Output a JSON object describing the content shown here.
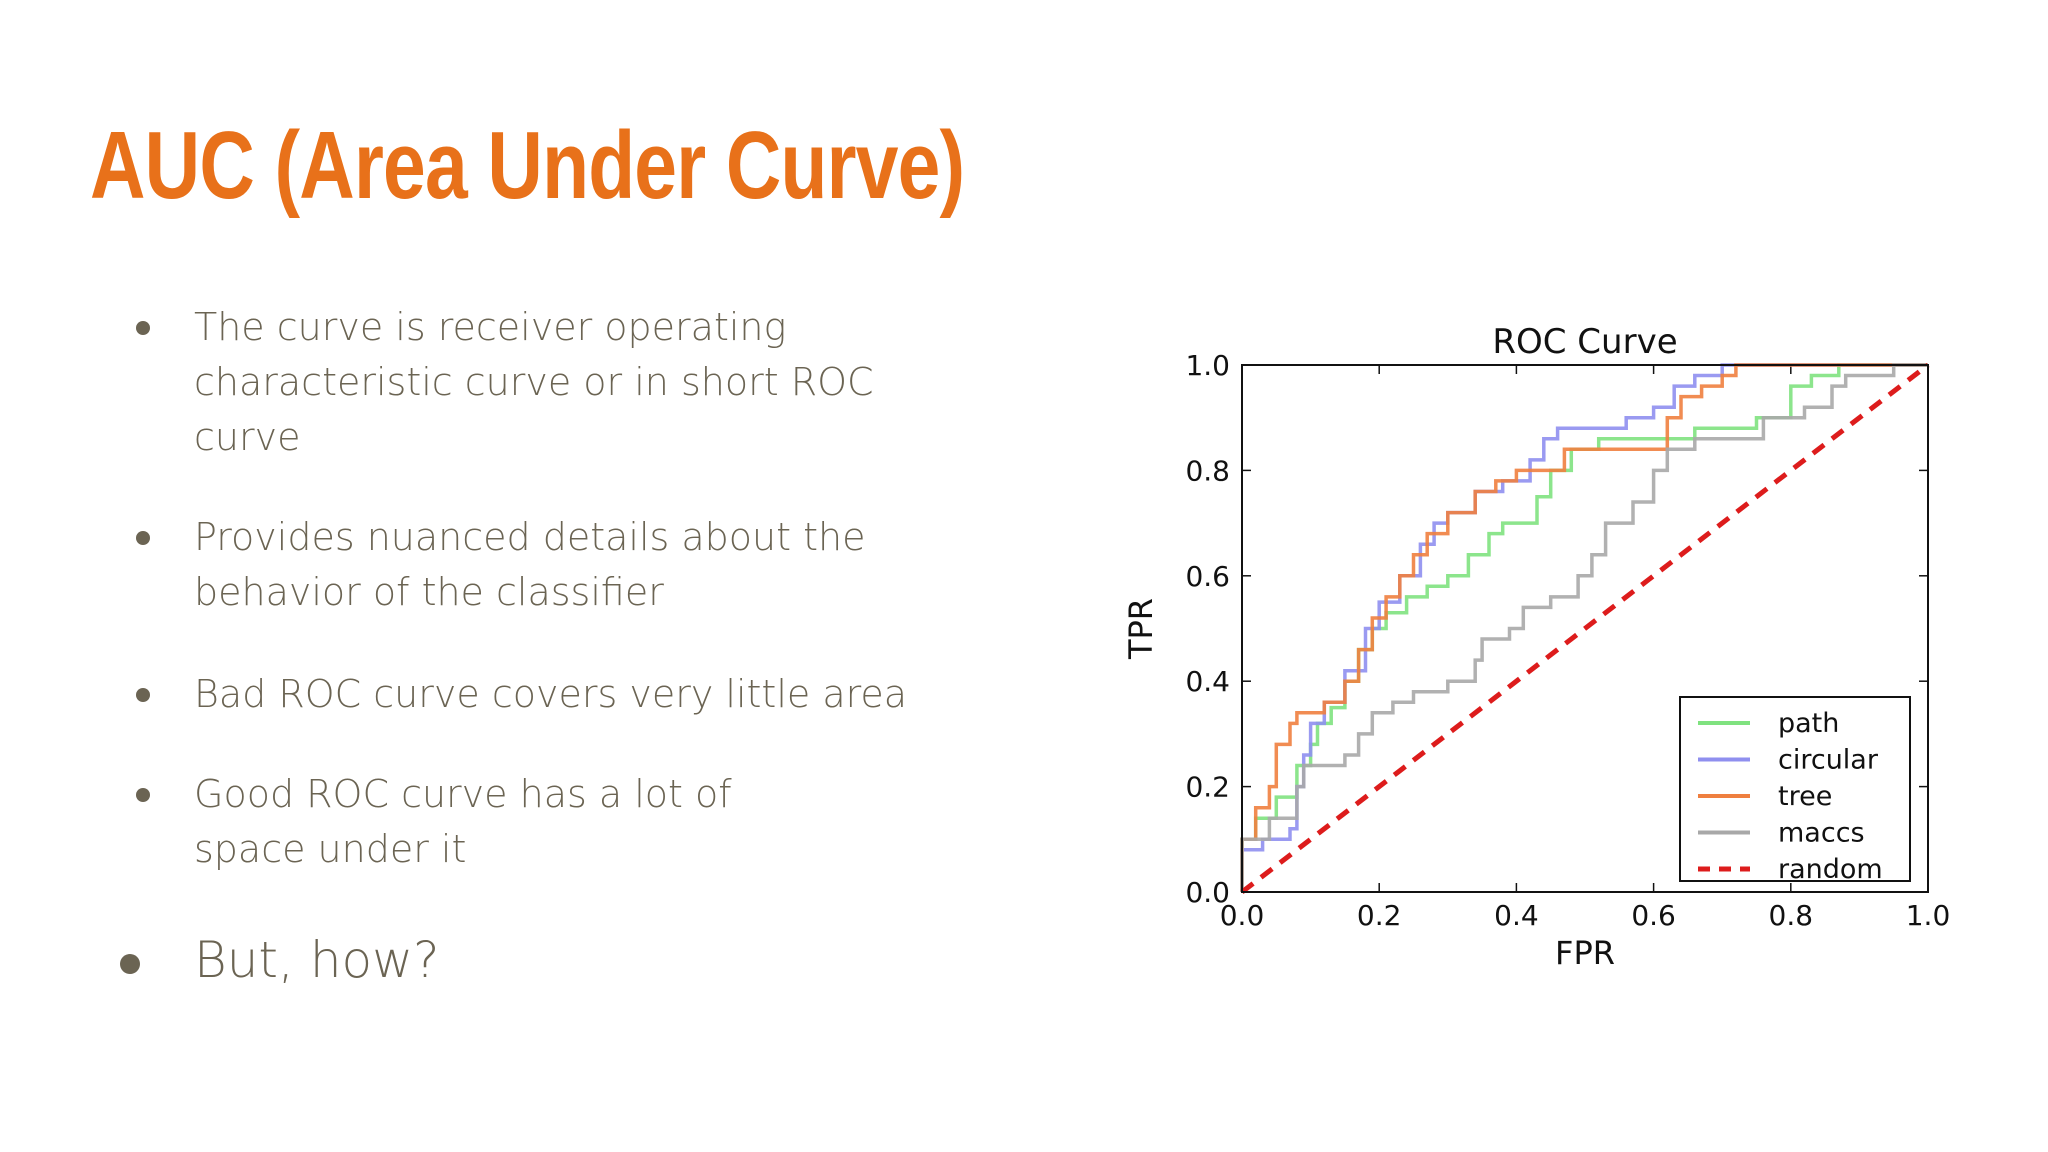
{
  "slide": {
    "title": "AUC (Area Under Curve)",
    "title_color": "#e8711a",
    "text_color": "#6b6453",
    "bullets": [
      "The curve is receiver operating characteristic curve or in short ROC curve",
      "Provides nuanced details about the behavior of the classifier",
      "Bad ROC curve covers very little area",
      "Good ROC curve has a lot of space under it",
      "But, how?"
    ]
  },
  "chart_data": {
    "type": "line",
    "title": "ROC Curve",
    "xlabel": "FPR",
    "ylabel": "TPR",
    "xlim": [
      0.0,
      1.0
    ],
    "ylim": [
      0.0,
      1.0
    ],
    "xticks": [
      "0.0",
      "0.2",
      "0.4",
      "0.6",
      "0.8",
      "1.0"
    ],
    "yticks": [
      "0.0",
      "0.2",
      "0.4",
      "0.6",
      "0.8",
      "1.0"
    ],
    "grid": false,
    "legend_position": "lower-right",
    "series": [
      {
        "name": "path",
        "color": "#7fe27f",
        "style": "solid",
        "points": [
          [
            0.0,
            0.0
          ],
          [
            0.0,
            0.1
          ],
          [
            0.02,
            0.1
          ],
          [
            0.02,
            0.14
          ],
          [
            0.05,
            0.14
          ],
          [
            0.05,
            0.18
          ],
          [
            0.08,
            0.18
          ],
          [
            0.08,
            0.24
          ],
          [
            0.1,
            0.24
          ],
          [
            0.1,
            0.28
          ],
          [
            0.11,
            0.28
          ],
          [
            0.11,
            0.32
          ],
          [
            0.13,
            0.32
          ],
          [
            0.13,
            0.35
          ],
          [
            0.15,
            0.35
          ],
          [
            0.15,
            0.4
          ],
          [
            0.17,
            0.4
          ],
          [
            0.17,
            0.46
          ],
          [
            0.19,
            0.46
          ],
          [
            0.19,
            0.5
          ],
          [
            0.21,
            0.5
          ],
          [
            0.21,
            0.53
          ],
          [
            0.24,
            0.53
          ],
          [
            0.24,
            0.56
          ],
          [
            0.27,
            0.56
          ],
          [
            0.27,
            0.58
          ],
          [
            0.3,
            0.58
          ],
          [
            0.3,
            0.6
          ],
          [
            0.33,
            0.6
          ],
          [
            0.33,
            0.64
          ],
          [
            0.36,
            0.64
          ],
          [
            0.36,
            0.68
          ],
          [
            0.38,
            0.68
          ],
          [
            0.38,
            0.7
          ],
          [
            0.43,
            0.7
          ],
          [
            0.43,
            0.75
          ],
          [
            0.45,
            0.75
          ],
          [
            0.45,
            0.8
          ],
          [
            0.48,
            0.8
          ],
          [
            0.48,
            0.84
          ],
          [
            0.52,
            0.84
          ],
          [
            0.52,
            0.86
          ],
          [
            0.66,
            0.86
          ],
          [
            0.66,
            0.88
          ],
          [
            0.75,
            0.88
          ],
          [
            0.75,
            0.9
          ],
          [
            0.8,
            0.9
          ],
          [
            0.8,
            0.96
          ],
          [
            0.83,
            0.96
          ],
          [
            0.83,
            0.98
          ],
          [
            0.87,
            0.98
          ],
          [
            0.87,
            1.0
          ],
          [
            1.0,
            1.0
          ]
        ]
      },
      {
        "name": "circular",
        "color": "#8f8fef",
        "style": "solid",
        "points": [
          [
            0.0,
            0.0
          ],
          [
            0.0,
            0.08
          ],
          [
            0.03,
            0.08
          ],
          [
            0.03,
            0.1
          ],
          [
            0.07,
            0.1
          ],
          [
            0.07,
            0.12
          ],
          [
            0.08,
            0.12
          ],
          [
            0.08,
            0.2
          ],
          [
            0.09,
            0.2
          ],
          [
            0.09,
            0.26
          ],
          [
            0.1,
            0.26
          ],
          [
            0.1,
            0.32
          ],
          [
            0.12,
            0.32
          ],
          [
            0.12,
            0.36
          ],
          [
            0.15,
            0.36
          ],
          [
            0.15,
            0.42
          ],
          [
            0.18,
            0.42
          ],
          [
            0.18,
            0.5
          ],
          [
            0.2,
            0.5
          ],
          [
            0.2,
            0.55
          ],
          [
            0.23,
            0.55
          ],
          [
            0.23,
            0.6
          ],
          [
            0.26,
            0.6
          ],
          [
            0.26,
            0.66
          ],
          [
            0.28,
            0.66
          ],
          [
            0.28,
            0.7
          ],
          [
            0.3,
            0.7
          ],
          [
            0.3,
            0.72
          ],
          [
            0.34,
            0.72
          ],
          [
            0.34,
            0.76
          ],
          [
            0.38,
            0.76
          ],
          [
            0.38,
            0.78
          ],
          [
            0.42,
            0.78
          ],
          [
            0.42,
            0.82
          ],
          [
            0.44,
            0.82
          ],
          [
            0.44,
            0.86
          ],
          [
            0.46,
            0.86
          ],
          [
            0.46,
            0.88
          ],
          [
            0.56,
            0.88
          ],
          [
            0.56,
            0.9
          ],
          [
            0.6,
            0.9
          ],
          [
            0.6,
            0.92
          ],
          [
            0.63,
            0.92
          ],
          [
            0.63,
            0.96
          ],
          [
            0.66,
            0.96
          ],
          [
            0.66,
            0.98
          ],
          [
            0.7,
            0.98
          ],
          [
            0.7,
            1.0
          ],
          [
            1.0,
            1.0
          ]
        ]
      },
      {
        "name": "tree",
        "color": "#ef7f3f",
        "style": "solid",
        "points": [
          [
            0.0,
            0.0
          ],
          [
            0.0,
            0.1
          ],
          [
            0.02,
            0.1
          ],
          [
            0.02,
            0.16
          ],
          [
            0.04,
            0.16
          ],
          [
            0.04,
            0.2
          ],
          [
            0.05,
            0.2
          ],
          [
            0.05,
            0.28
          ],
          [
            0.07,
            0.28
          ],
          [
            0.07,
            0.32
          ],
          [
            0.08,
            0.32
          ],
          [
            0.08,
            0.34
          ],
          [
            0.12,
            0.34
          ],
          [
            0.12,
            0.36
          ],
          [
            0.15,
            0.36
          ],
          [
            0.15,
            0.4
          ],
          [
            0.17,
            0.4
          ],
          [
            0.17,
            0.46
          ],
          [
            0.19,
            0.46
          ],
          [
            0.19,
            0.52
          ],
          [
            0.21,
            0.52
          ],
          [
            0.21,
            0.56
          ],
          [
            0.23,
            0.56
          ],
          [
            0.23,
            0.6
          ],
          [
            0.25,
            0.6
          ],
          [
            0.25,
            0.64
          ],
          [
            0.27,
            0.64
          ],
          [
            0.27,
            0.68
          ],
          [
            0.3,
            0.68
          ],
          [
            0.3,
            0.72
          ],
          [
            0.34,
            0.72
          ],
          [
            0.34,
            0.76
          ],
          [
            0.37,
            0.76
          ],
          [
            0.37,
            0.78
          ],
          [
            0.4,
            0.78
          ],
          [
            0.4,
            0.8
          ],
          [
            0.47,
            0.8
          ],
          [
            0.47,
            0.84
          ],
          [
            0.62,
            0.84
          ],
          [
            0.62,
            0.9
          ],
          [
            0.64,
            0.9
          ],
          [
            0.64,
            0.94
          ],
          [
            0.67,
            0.94
          ],
          [
            0.67,
            0.96
          ],
          [
            0.7,
            0.96
          ],
          [
            0.7,
            0.98
          ],
          [
            0.72,
            0.98
          ],
          [
            0.72,
            1.0
          ],
          [
            1.0,
            1.0
          ]
        ]
      },
      {
        "name": "maccs",
        "color": "#a8a8a8",
        "style": "solid",
        "points": [
          [
            0.0,
            0.0
          ],
          [
            0.0,
            0.1
          ],
          [
            0.04,
            0.1
          ],
          [
            0.04,
            0.14
          ],
          [
            0.08,
            0.14
          ],
          [
            0.08,
            0.2
          ],
          [
            0.09,
            0.2
          ],
          [
            0.09,
            0.24
          ],
          [
            0.15,
            0.24
          ],
          [
            0.15,
            0.26
          ],
          [
            0.17,
            0.26
          ],
          [
            0.17,
            0.3
          ],
          [
            0.19,
            0.3
          ],
          [
            0.19,
            0.34
          ],
          [
            0.22,
            0.34
          ],
          [
            0.22,
            0.36
          ],
          [
            0.25,
            0.36
          ],
          [
            0.25,
            0.38
          ],
          [
            0.3,
            0.38
          ],
          [
            0.3,
            0.4
          ],
          [
            0.34,
            0.4
          ],
          [
            0.34,
            0.44
          ],
          [
            0.35,
            0.44
          ],
          [
            0.35,
            0.48
          ],
          [
            0.39,
            0.48
          ],
          [
            0.39,
            0.5
          ],
          [
            0.41,
            0.5
          ],
          [
            0.41,
            0.54
          ],
          [
            0.45,
            0.54
          ],
          [
            0.45,
            0.56
          ],
          [
            0.49,
            0.56
          ],
          [
            0.49,
            0.6
          ],
          [
            0.51,
            0.6
          ],
          [
            0.51,
            0.64
          ],
          [
            0.53,
            0.64
          ],
          [
            0.53,
            0.7
          ],
          [
            0.57,
            0.7
          ],
          [
            0.57,
            0.74
          ],
          [
            0.6,
            0.74
          ],
          [
            0.6,
            0.8
          ],
          [
            0.62,
            0.8
          ],
          [
            0.62,
            0.84
          ],
          [
            0.66,
            0.84
          ],
          [
            0.66,
            0.86
          ],
          [
            0.76,
            0.86
          ],
          [
            0.76,
            0.9
          ],
          [
            0.82,
            0.9
          ],
          [
            0.82,
            0.92
          ],
          [
            0.86,
            0.92
          ],
          [
            0.86,
            0.96
          ],
          [
            0.88,
            0.96
          ],
          [
            0.88,
            0.98
          ],
          [
            0.95,
            0.98
          ],
          [
            0.95,
            1.0
          ],
          [
            1.0,
            1.0
          ]
        ]
      },
      {
        "name": "random",
        "color": "#dd1c1c",
        "style": "dashed",
        "points": [
          [
            0.0,
            0.0
          ],
          [
            1.0,
            1.0
          ]
        ]
      }
    ]
  }
}
